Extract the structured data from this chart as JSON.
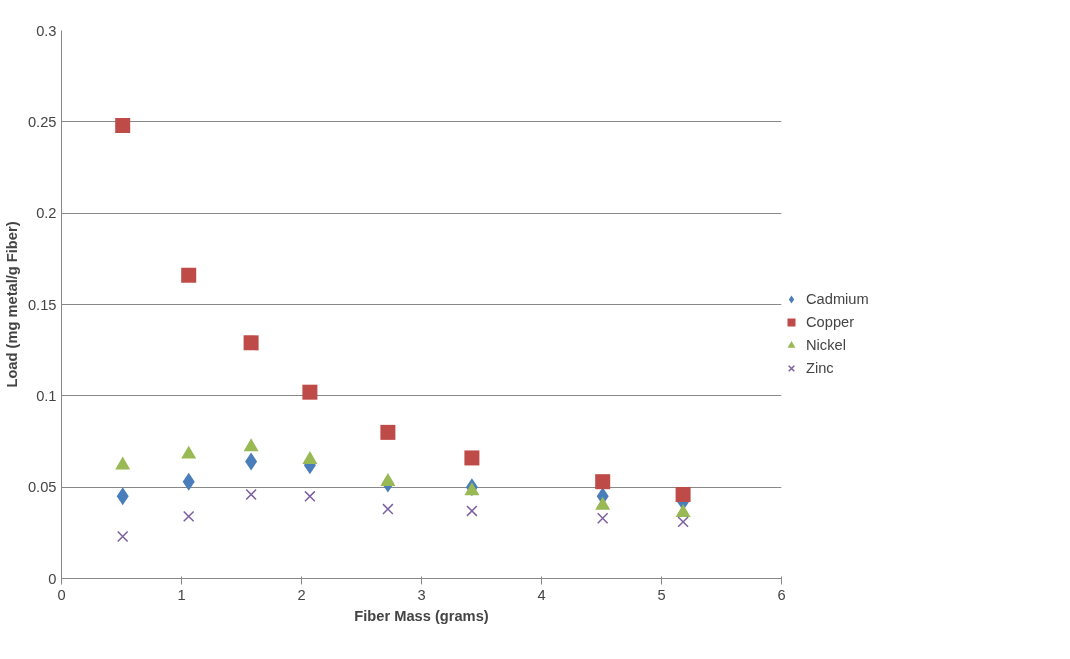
{
  "chart_data": {
    "type": "scatter",
    "xlabel": "Fiber Mass (grams)",
    "ylabel": "Load (mg metal/g Fiber)",
    "x": [
      0.51,
      1.06,
      1.58,
      2.07,
      2.72,
      3.42,
      4.51,
      5.18
    ],
    "series": [
      {
        "name": "Cadmium",
        "color": "#4a7ebb",
        "marker": "diamond",
        "values": [
          0.045,
          0.053,
          0.064,
          0.062,
          0.052,
          0.05,
          0.045,
          0.042
        ]
      },
      {
        "name": "Copper",
        "color": "#be4b48",
        "marker": "square",
        "values": [
          0.248,
          0.166,
          0.129,
          0.102,
          0.08,
          0.066,
          0.053,
          0.046
        ]
      },
      {
        "name": "Nickel",
        "color": "#98b954",
        "marker": "triangle",
        "values": [
          0.062,
          0.068,
          0.072,
          0.065,
          0.053,
          0.048,
          0.04,
          0.036
        ]
      },
      {
        "name": "Zinc",
        "color": "#7d60a0",
        "marker": "cross",
        "values": [
          0.023,
          0.034,
          0.046,
          0.045,
          0.038,
          0.037,
          0.033,
          0.031
        ]
      }
    ],
    "xlim": [
      0,
      6
    ],
    "xticks": [
      0,
      1,
      2,
      3,
      4,
      5,
      6
    ],
    "ylim": [
      0,
      0.3
    ],
    "yticks": [
      0,
      0.05,
      0.1,
      0.15,
      0.2,
      0.25,
      0.3
    ],
    "grid": "y",
    "legend": "right"
  }
}
